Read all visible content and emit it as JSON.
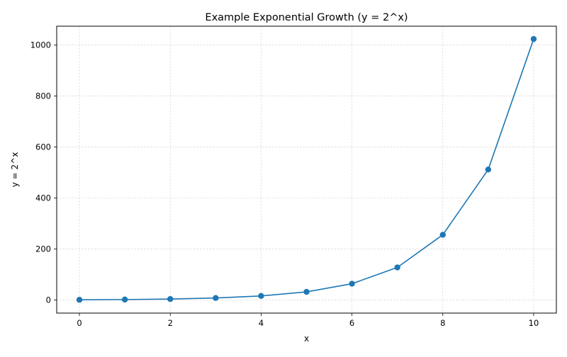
{
  "chart_data": {
    "type": "line",
    "title": "Example Exponential Growth (y = 2^x)",
    "xlabel": "x",
    "ylabel": "y = 2^x",
    "xlim": [
      -0.5,
      10.5
    ],
    "ylim": [
      -51.15,
      1074.15
    ],
    "x_ticks": [
      0,
      2,
      4,
      6,
      8,
      10
    ],
    "y_ticks": [
      0,
      200,
      400,
      600,
      800,
      1000
    ],
    "grid": true,
    "legend": "none",
    "series": [
      {
        "x": [
          0,
          1,
          2,
          3,
          4,
          5,
          6,
          7,
          8,
          9,
          10
        ],
        "values": [
          1,
          2,
          4,
          8,
          16,
          32,
          64,
          128,
          256,
          512,
          1024
        ],
        "color": "#1f77b4",
        "marker": "circle"
      }
    ]
  }
}
